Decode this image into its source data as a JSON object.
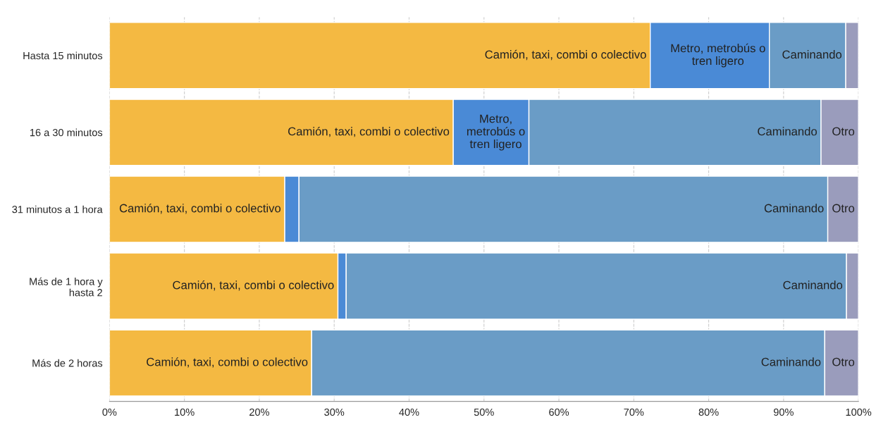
{
  "chart_data": {
    "type": "bar",
    "orientation": "horizontal",
    "stacked": true,
    "categories": [
      "Hasta 15 minutos",
      "16 a 30 minutos",
      "31 minutos a 1 hora",
      "Más de 1 hora y\nhasta 2",
      "Más de 2 horas"
    ],
    "series": [
      {
        "color": "#f4b942",
        "values": [
          72.2,
          45.9,
          23.4,
          30.5,
          27.0
        ],
        "value_labels": [
          "Camión, taxi, combi o colectivo",
          "Camión, taxi, combi o colectivo",
          "Camión, taxi, combi o colectivo",
          "Camión, taxi, combi o colectivo",
          "Camión, taxi, combi o colectivo"
        ]
      },
      {
        "color": "#4a8ad6",
        "values": [
          15.9,
          10.1,
          1.9,
          1.1,
          0
        ],
        "value_labels": [
          "Metro, metrobús o\ntren ligero",
          "Metro,\nmetrobús o\ntren ligero",
          null,
          null,
          null
        ]
      },
      {
        "color": "#6a9cc6",
        "values": [
          10.2,
          39.0,
          70.6,
          66.8,
          68.5
        ],
        "value_labels": [
          "Caminando",
          "Caminando",
          "Caminando",
          "Caminando",
          "Caminando"
        ]
      },
      {
        "color": "#9a9cbc",
        "values": [
          1.7,
          5.0,
          4.1,
          1.6,
          4.5
        ],
        "value_labels": [
          null,
          "Otro",
          "Otro",
          null,
          "Otro"
        ]
      }
    ],
    "xlim": [
      0,
      100
    ],
    "xticks": [
      {
        "value": 0,
        "label": "0%"
      },
      {
        "value": 10,
        "label": "10%"
      },
      {
        "value": 20,
        "label": "20%"
      },
      {
        "value": 30,
        "label": "30%"
      },
      {
        "value": 40,
        "label": "40%"
      },
      {
        "value": 50,
        "label": "50%"
      },
      {
        "value": 60,
        "label": "60%"
      },
      {
        "value": 70,
        "label": "70%"
      },
      {
        "value": 80,
        "label": "80%"
      },
      {
        "value": 90,
        "label": "90%"
      },
      {
        "value": 100,
        "label": "100%"
      }
    ],
    "grid": "x"
  }
}
